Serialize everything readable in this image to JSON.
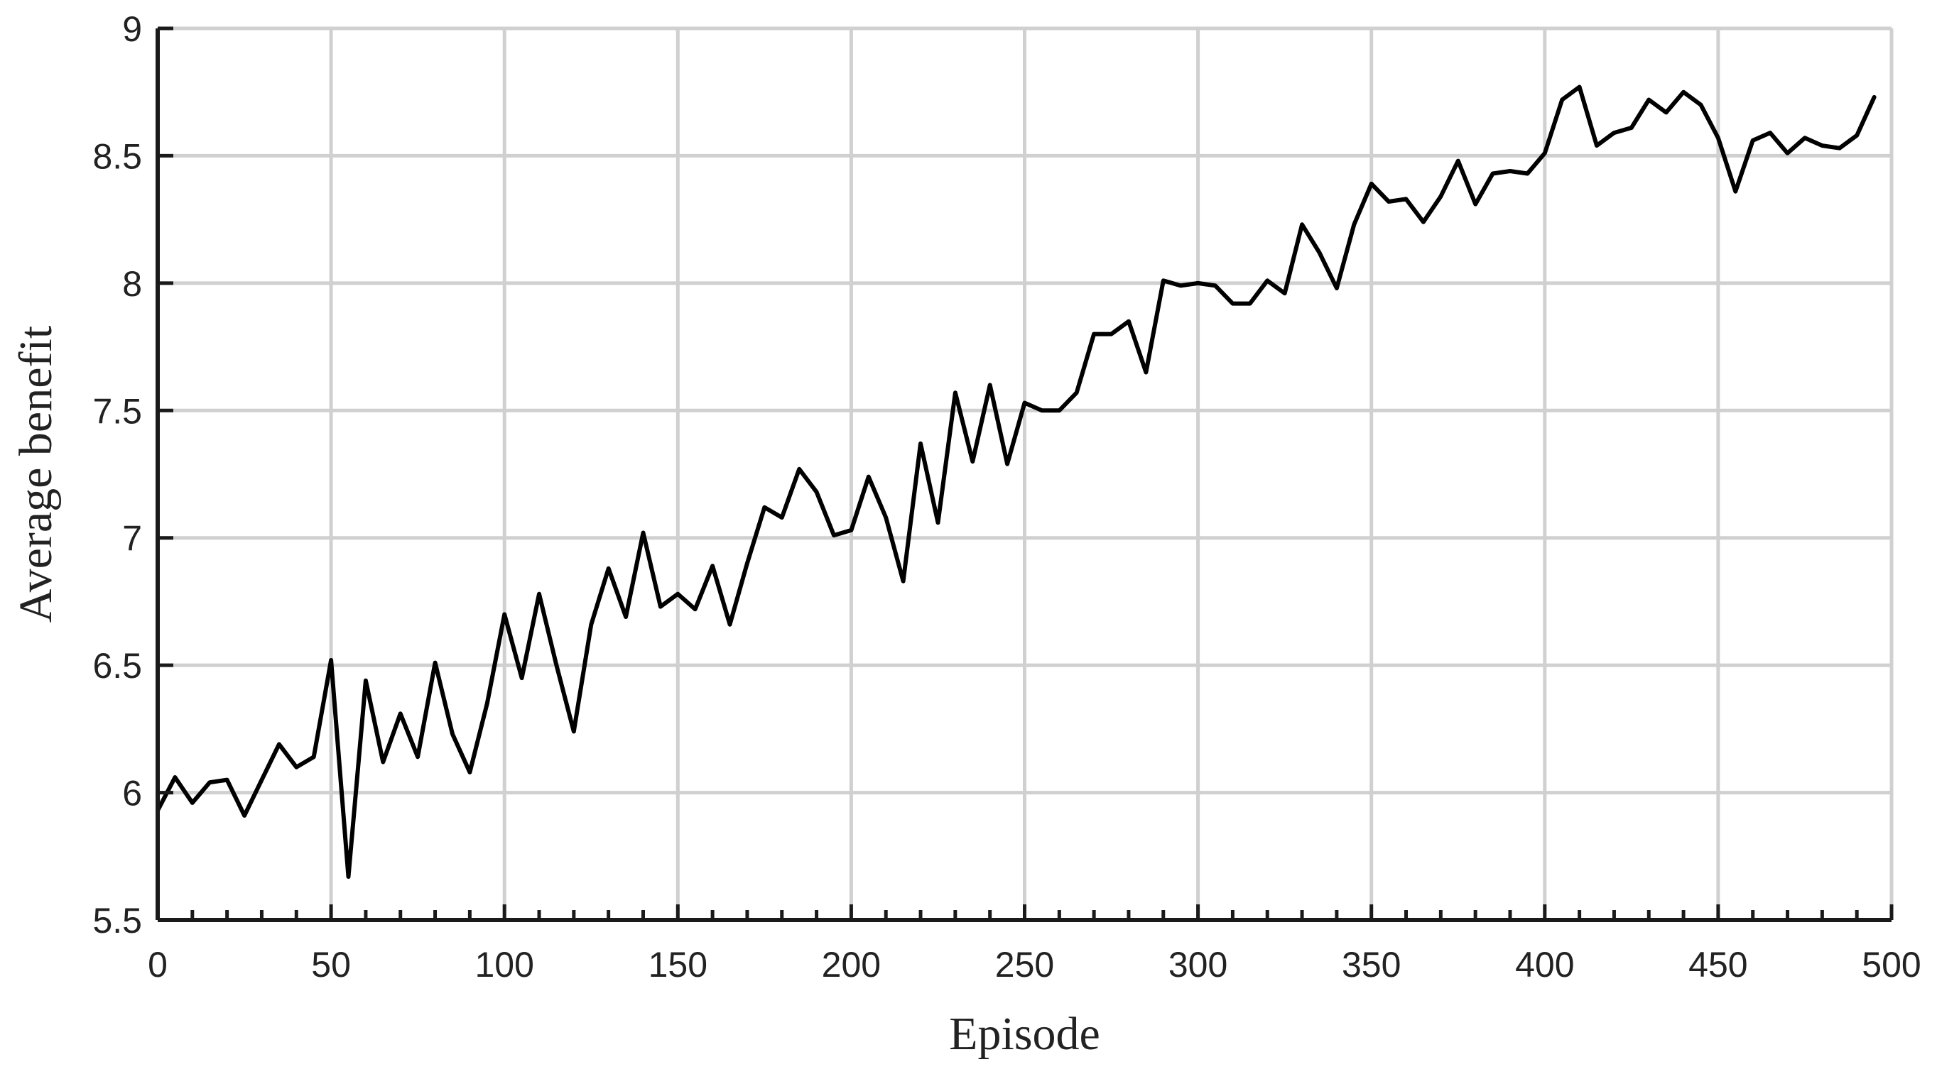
{
  "chart_data": {
    "type": "line",
    "title": "",
    "xlabel": "Episode",
    "ylabel": "Average benefit",
    "xlim": [
      0,
      500
    ],
    "ylim": [
      5.5,
      9
    ],
    "xticks": [
      0,
      50,
      100,
      150,
      200,
      250,
      300,
      350,
      400,
      450,
      500
    ],
    "xtick_labels": [
      "0",
      "50",
      "100",
      "150",
      "200",
      "250",
      "300",
      "350",
      "400",
      "450",
      "500"
    ],
    "yticks": [
      5.5,
      6,
      6.5,
      7,
      7.5,
      8,
      8.5,
      9
    ],
    "ytick_labels": [
      "5.5",
      "6",
      "6.5",
      "7",
      "7.5",
      "8",
      "8.5",
      "9"
    ],
    "grid": true,
    "legend": "none",
    "series": [
      {
        "color": "#000000",
        "x": [
          0,
          5,
          10,
          15,
          20,
          25,
          30,
          35,
          40,
          45,
          50,
          55,
          60,
          65,
          70,
          75,
          80,
          85,
          90,
          95,
          100,
          105,
          110,
          115,
          120,
          125,
          130,
          135,
          140,
          145,
          150,
          155,
          160,
          165,
          170,
          175,
          180,
          185,
          190,
          195,
          200,
          205,
          210,
          215,
          220,
          225,
          230,
          235,
          240,
          245,
          250,
          255,
          260,
          265,
          270,
          275,
          280,
          285,
          290,
          295,
          300,
          305,
          310,
          315,
          320,
          325,
          330,
          335,
          340,
          345,
          350,
          355,
          360,
          365,
          370,
          375,
          380,
          385,
          390,
          395,
          400,
          405,
          410,
          415,
          420,
          425,
          430,
          435,
          440,
          445,
          450,
          455,
          460,
          465,
          470,
          475,
          480,
          485,
          490,
          495
        ],
        "y": [
          5.93,
          6.06,
          5.96,
          6.04,
          6.05,
          5.91,
          6.05,
          6.19,
          6.1,
          6.14,
          6.52,
          5.67,
          6.44,
          6.12,
          6.31,
          6.14,
          6.51,
          6.23,
          6.08,
          6.35,
          6.7,
          6.45,
          6.78,
          6.5,
          6.24,
          6.66,
          6.88,
          6.69,
          7.02,
          6.73,
          6.78,
          6.72,
          6.89,
          6.66,
          6.9,
          7.12,
          7.08,
          7.27,
          7.18,
          7.01,
          7.03,
          7.24,
          7.08,
          6.83,
          7.37,
          7.06,
          7.57,
          7.3,
          7.6,
          7.29,
          7.53,
          7.5,
          7.5,
          7.57,
          7.8,
          7.8,
          7.85,
          7.65,
          8.01,
          7.99,
          8.0,
          7.99,
          7.92,
          7.92,
          8.01,
          7.96,
          8.23,
          8.12,
          7.98,
          8.23,
          8.39,
          8.32,
          8.33,
          8.24,
          8.34,
          8.48,
          8.31,
          8.43,
          8.44,
          8.43,
          8.51,
          8.72,
          8.77,
          8.54,
          8.59,
          8.61,
          8.72,
          8.67,
          8.75,
          8.7,
          8.57,
          8.36,
          8.56,
          8.59,
          8.51,
          8.57,
          8.54,
          8.53,
          8.58,
          8.73
        ]
      }
    ]
  }
}
